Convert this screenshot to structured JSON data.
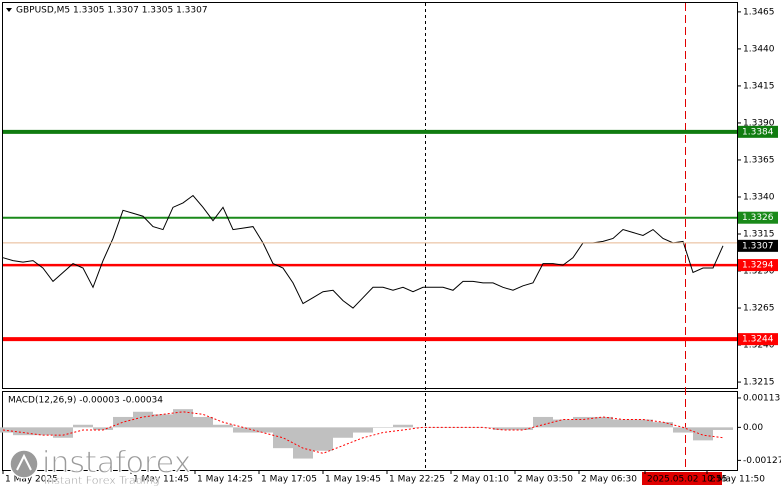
{
  "chart_data": [
    {
      "type": "line",
      "title": "GBPUSD,M5  1.3305 1.3307 1.3305 1.3307",
      "series": [
        {
          "color": "#000000",
          "values": [
            1.3299,
            1.3297,
            1.3296,
            1.3297,
            1.3292,
            1.3283,
            1.3289,
            1.3295,
            1.3292,
            1.3279,
            1.3297,
            1.3312,
            1.3331,
            1.3329,
            1.3327,
            1.332,
            1.3318,
            1.3333,
            1.3336,
            1.3341,
            1.3333,
            1.3324,
            1.3333,
            1.3318,
            1.3319,
            1.332,
            1.3309,
            1.3295,
            1.3292,
            1.3282,
            1.3268,
            1.3272,
            1.3276,
            1.3277,
            1.327,
            1.3265,
            1.3272,
            1.3279,
            1.3279,
            1.3277,
            1.3279,
            1.3276,
            1.3279,
            1.3279,
            1.3279,
            1.3277,
            1.3283,
            1.3283,
            1.3282,
            1.3282,
            1.3279,
            1.3277,
            1.328,
            1.3282,
            1.3295,
            1.3295,
            1.3294,
            1.3299,
            1.3309,
            1.3309,
            1.331,
            1.3312,
            1.3318,
            1.3316,
            1.3314,
            1.3318,
            1.3312,
            1.3309,
            1.331,
            1.3289,
            1.3292,
            1.3292,
            1.3307
          ]
        }
      ],
      "levels": [
        {
          "value": 1.3384,
          "color": "#107c10"
        },
        {
          "value": 1.3326,
          "color": "#1a8a1a"
        },
        {
          "value": 1.3294,
          "color": "#ff0000"
        },
        {
          "value": 1.3244,
          "color": "#ff0000"
        }
      ],
      "ylim": [
        1.3211,
        1.3471
      ],
      "yticks": [
        1.3465,
        {
          "value": 1.344,
          "label": "1.3440"
        },
        1.3415,
        {
          "value": 1.339,
          "label": "1.3390"
        },
        1.3365,
        {
          "value": 1.334,
          "label": "1.3340"
        },
        1.3315,
        {
          "value": 1.329,
          "label": "1.3290"
        },
        1.3265,
        {
          "value": 1.324,
          "label": "1.3240"
        },
        1.3215
      ],
      "xticks": [
        {
          "value": 0,
          "label": "1 May 2025"
        },
        {
          "value": 12.8,
          "label": "1 May 11:45"
        },
        {
          "value": 19.2,
          "label": "1 May 14:25"
        },
        {
          "value": 25.6,
          "label": "1 May 17:05"
        },
        {
          "value": 32,
          "label": "1 May 19:45"
        },
        {
          "value": 38.4,
          "label": "1 May 22:25"
        },
        {
          "value": 44.8,
          "label": "2 May 01:10"
        },
        {
          "value": 51.2,
          "label": "2 May 03:50"
        },
        {
          "value": 57.6,
          "label": "2 May 06:30"
        },
        {
          "value": 64.2,
          "label": "2025.05.02 10:55"
        },
        {
          "value": 70.4,
          "label": "2 May 11:50"
        }
      ]
    },
    {
      "type": "bar",
      "title": "MACD(12,26,9) -0.00003 -0.00034",
      "series": [
        {
          "type": "bar",
          "color": "#c0c0c0",
          "values": [
            -0.0002,
            -0.0003,
            -0.0003,
            -0.0004,
            0.0001,
            -0.0001,
            0.0004,
            0.0006,
            0.0005,
            0.0007,
            0.0004,
            0.0001,
            -0.0002,
            -0.0002,
            -0.0008,
            -0.0012,
            -0.0009,
            -0.0004,
            -0.0002,
            0.0,
            0.0001,
            0.0,
            0.0,
            0.0,
            0.0,
            -0.0001,
            -0.0001,
            0.0004,
            0.0003,
            0.0004,
            0.0004,
            0.0003,
            0.0003,
            0.0002,
            -0.0002,
            -0.0005,
            -0.0001
          ]
        },
        {
          "type": "line",
          "color": "#ff0000",
          "values": [
            -0.0001,
            -0.0002,
            -0.0003,
            -0.0003,
            -0.0001,
            -0.0001,
            0.0002,
            0.0004,
            0.0005,
            0.0006,
            0.0005,
            0.0002,
            0.0,
            -0.0002,
            -0.0004,
            -0.0008,
            -0.001,
            -0.0007,
            -0.0004,
            -0.0002,
            -0.0001,
            0.0,
            0.0,
            0.0,
            0.0,
            -0.0001,
            -0.0001,
            0.0001,
            0.0003,
            0.0003,
            0.0004,
            0.0003,
            0.0003,
            0.0002,
            0.0,
            -0.0003,
            -0.0004
          ]
        }
      ],
      "ylim": [
        -0.00164,
        0.00136
      ],
      "yticks": [
        0.00113,
        {
          "value": 0,
          "label": "0.00"
        },
        -0.00127
      ]
    }
  ],
  "watermark": {
    "name": "instaforex",
    "tagline": "Instant Forex Trading"
  }
}
